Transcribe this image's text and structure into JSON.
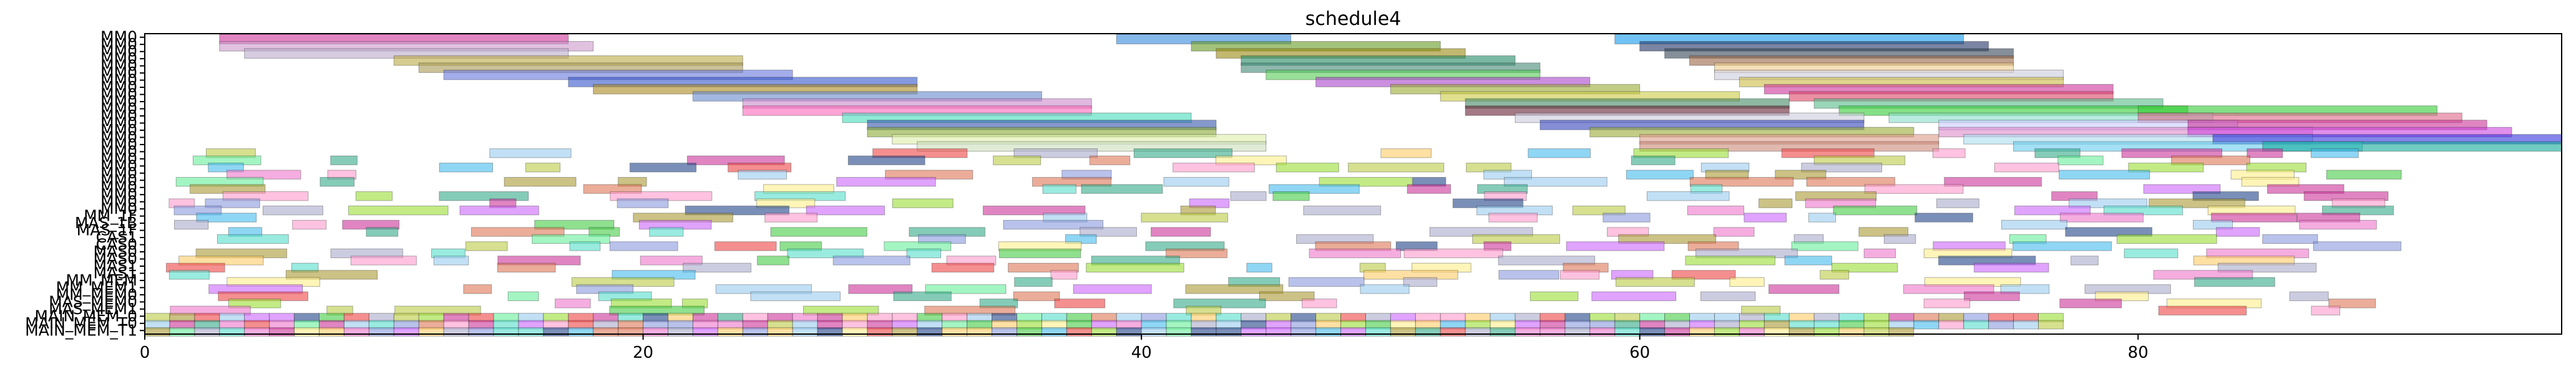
{
  "chart_data": {
    "type": "gantt",
    "title": "schedule4",
    "xlabel": "",
    "ylabel": "",
    "xlim": [
      0,
      97
    ],
    "x_ticks": [
      0,
      20,
      40,
      60,
      80
    ],
    "y_tick_labels": [
      "MM0",
      "MM0",
      "MM0",
      "MM0",
      "MM0",
      "MM0",
      "MM0",
      "MM0",
      "MM0",
      "MM0",
      "MM0",
      "MM0",
      "MM0",
      "MM0",
      "MM0",
      "MM0",
      "MM0",
      "MM0",
      "MM0",
      "MM0",
      "MM0",
      "MM0",
      "MM0",
      "MM0",
      "MM0",
      "MM_1F",
      "MAS_1B",
      "MAS_1F",
      "CAS1",
      "CAS0",
      "MAS0",
      "MAS0",
      "MAS1",
      "MAS1",
      "MM_MEM",
      "MM_MEM1",
      "MM_MEM0",
      "MAS_MEM0",
      "MAS_MEM1",
      "MAIN_MEM_0",
      "MAIN_MEM_T0",
      "MAIN_MEM_T1"
    ],
    "rows": [
      {
        "segs": [
          [
            3,
            17,
            "#cc3399"
          ],
          [
            39,
            46,
            "#3388dd"
          ],
          [
            59,
            73,
            "#1199ee"
          ]
        ]
      },
      {
        "segs": [
          [
            3,
            18,
            "#cc99cc"
          ],
          [
            42,
            52,
            "#669922"
          ],
          [
            60,
            74,
            "#223366"
          ]
        ]
      },
      {
        "segs": [
          [
            4,
            17,
            "#bbaacc"
          ],
          [
            43,
            53,
            "#998811"
          ],
          [
            61,
            75,
            "#334455"
          ]
        ]
      },
      {
        "segs": [
          [
            10,
            24,
            "#bbaa44"
          ],
          [
            44,
            55,
            "#228866"
          ],
          [
            62,
            75,
            "#996644"
          ]
        ]
      },
      {
        "segs": [
          [
            11,
            24,
            "#aa9955"
          ],
          [
            44,
            56,
            "#448877"
          ],
          [
            63,
            75,
            "#eecc88"
          ]
        ]
      },
      {
        "segs": [
          [
            12,
            26,
            "#6677dd"
          ],
          [
            45,
            56,
            "#55cc55"
          ],
          [
            63,
            77,
            "#ccccdd"
          ]
        ]
      },
      {
        "segs": [
          [
            17,
            31,
            "#3355cc"
          ],
          [
            47,
            58,
            "#aa44cc"
          ],
          [
            64,
            77,
            "#ccbb44"
          ]
        ]
      },
      {
        "segs": [
          [
            18,
            31,
            "#aa8822"
          ],
          [
            50,
            60,
            "#99aa33"
          ],
          [
            65,
            79,
            "#cc3399"
          ]
        ]
      },
      {
        "segs": [
          [
            22,
            36,
            "#6688cc"
          ],
          [
            52,
            64,
            "#cccc44"
          ],
          [
            66,
            79,
            "#dd4466"
          ]
        ]
      },
      {
        "segs": [
          [
            24,
            38,
            "#cc88cc"
          ],
          [
            53,
            66,
            "#448866"
          ],
          [
            67,
            81,
            "#55bb88"
          ]
        ]
      },
      {
        "segs": [
          [
            24,
            38,
            "#ff66bb"
          ],
          [
            53,
            66,
            "#662233"
          ],
          [
            68,
            82,
            "#33cc33"
          ],
          [
            80,
            92,
            "#33cc33"
          ]
        ]
      },
      {
        "segs": [
          [
            28,
            42,
            "#44ddbb"
          ],
          [
            55,
            69,
            "#ccccdd"
          ],
          [
            70,
            83,
            "#88ddcc"
          ],
          [
            80,
            93,
            "#dd6688"
          ]
        ]
      },
      {
        "segs": [
          [
            29,
            43,
            "#3355aa"
          ],
          [
            56,
            69,
            "#3344bb"
          ],
          [
            72,
            84,
            "#ccccff"
          ],
          [
            82,
            94,
            "#cc3399"
          ]
        ]
      },
      {
        "segs": [
          [
            29,
            43,
            "#88aa33"
          ],
          [
            58,
            71,
            "#99aa33"
          ],
          [
            72,
            87,
            "#dd88cc"
          ],
          [
            82,
            95,
            "#cc44dd"
          ]
        ]
      },
      {
        "segs": [
          [
            30,
            45,
            "#ddeeaa"
          ],
          [
            60,
            72,
            "#dd9988"
          ],
          [
            73,
            87,
            "#aaddee"
          ],
          [
            83,
            97,
            "#3333dd"
          ]
        ]
      },
      {
        "segs": [
          [
            31,
            45,
            "#ccddbb"
          ],
          [
            60,
            72,
            "#cc8877"
          ],
          [
            75,
            89,
            "#66ccee"
          ],
          [
            85,
            97,
            "#11aa99"
          ]
        ]
      }
    ],
    "patch_rows_start": 16,
    "patch_rows_end": 39,
    "patch_palette": [
      "#cc3399",
      "#ffee88",
      "#ee4444",
      "#44cc44",
      "#44bbee",
      "#aaaacc",
      "#99dd33",
      "#ff99cc",
      "#33aa88",
      "#cc66ff",
      "#ffcc66",
      "#8899dd",
      "#66ee99",
      "#dd7755",
      "#99ccee",
      "#aa9933",
      "#224488",
      "#ee77cc",
      "#55ddcc",
      "#bbcc44"
    ],
    "main_mem_rows": [
      39,
      40,
      41
    ]
  }
}
